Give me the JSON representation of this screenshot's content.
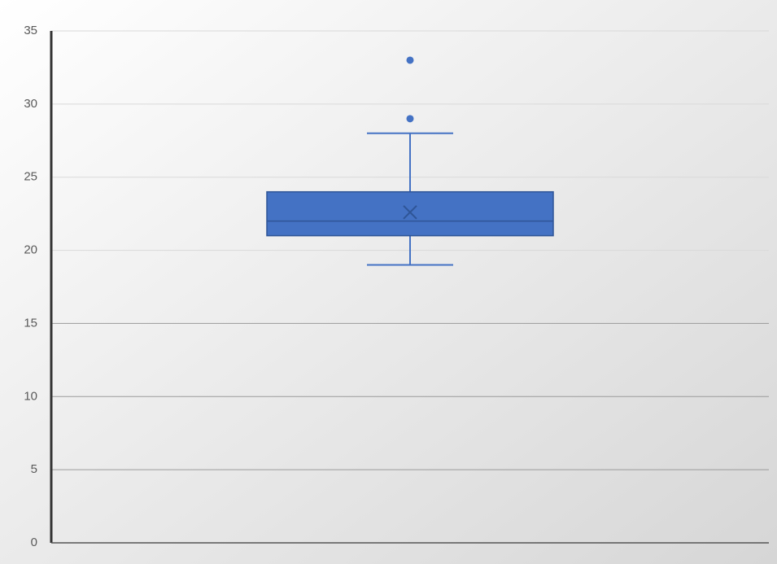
{
  "chart_data": {
    "type": "box",
    "boxes": [
      {
        "min": 19,
        "q1": 21,
        "median": 22,
        "q3": 24,
        "max": 28,
        "mean": 22.6,
        "outliers": [
          29,
          33
        ]
      }
    ],
    "color": "#4472c4",
    "ylim": [
      0,
      35
    ],
    "yticks": [
      0,
      5,
      10,
      15,
      20,
      25,
      30,
      35
    ],
    "grid": true
  }
}
